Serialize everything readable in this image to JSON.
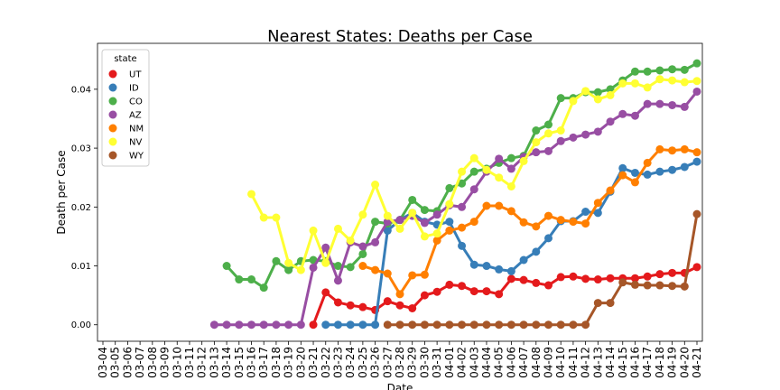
{
  "chart_data": {
    "type": "line",
    "title": "Nearest States: Deaths per Case",
    "x_label": "Date",
    "y_label": "Death per Case",
    "legend_title": "state",
    "legend": "upper left",
    "categories": [
      "03-04",
      "03-05",
      "03-06",
      "03-07",
      "03-08",
      "03-09",
      "03-10",
      "03-11",
      "03-12",
      "03-13",
      "03-14",
      "03-15",
      "03-16",
      "03-17",
      "03-18",
      "03-19",
      "03-20",
      "03-21",
      "03-22",
      "03-23",
      "03-24",
      "03-25",
      "03-26",
      "03-27",
      "03-28",
      "03-29",
      "03-30",
      "03-31",
      "04-01",
      "04-02",
      "04-03",
      "04-04",
      "04-05",
      "04-06",
      "04-07",
      "04-08",
      "04-09",
      "04-10",
      "04-11",
      "04-12",
      "04-13",
      "04-14",
      "04-15",
      "04-16",
      "04-17",
      "04-18",
      "04-19",
      "04-20",
      "04-21"
    ],
    "ylim": [
      -0.0028,
      0.0478
    ],
    "yticks": [
      {
        "value": 0,
        "label": "0.00"
      },
      0.01,
      0.02,
      0.03,
      0.04
    ],
    "series": [
      {
        "name": "UT",
        "color": "#e41a1c",
        "values": [
          null,
          null,
          null,
          null,
          null,
          null,
          null,
          null,
          null,
          null,
          null,
          null,
          null,
          null,
          null,
          null,
          null,
          0,
          0.0055,
          0.0038,
          0.0033,
          0.003,
          0.0025,
          0.004,
          0.0033,
          0.0028,
          0.005,
          0.0056,
          0.0068,
          0.0066,
          0.0057,
          0.0057,
          0.0052,
          0.0078,
          0.0076,
          0.0071,
          0.0067,
          0.0081,
          0.0082,
          0.0078,
          0.0077,
          0.0079,
          0.0079,
          0.0079,
          0.0082,
          0.0086,
          0.0088,
          0.0088,
          0.0098
        ]
      },
      {
        "name": "ID",
        "color": "#377eb8",
        "values": [
          null,
          null,
          null,
          null,
          null,
          null,
          null,
          null,
          null,
          null,
          null,
          null,
          null,
          null,
          null,
          null,
          null,
          null,
          0,
          0,
          0,
          0,
          0,
          0.016,
          0.0178,
          0.019,
          0.0175,
          0.017,
          0.0175,
          0.0134,
          0.0102,
          0.01,
          0.0094,
          0.0091,
          0.011,
          0.0124,
          0.0147,
          0.0176,
          0.0176,
          0.0192,
          0.019,
          0.0226,
          0.0266,
          0.0258,
          0.0255,
          0.026,
          0.0263,
          0.0268,
          0.0277
        ]
      },
      {
        "name": "CO",
        "color": "#4daf4a",
        "values": [
          null,
          null,
          null,
          null,
          null,
          null,
          null,
          null,
          null,
          null,
          0.01,
          0.0077,
          0.0077,
          0.0063,
          0.0108,
          0.0093,
          0.0108,
          0.011,
          0.0108,
          0.01,
          0.0098,
          0.012,
          0.0175,
          0.0172,
          0.0178,
          0.0212,
          0.0195,
          0.0193,
          0.0232,
          0.024,
          0.026,
          0.0265,
          0.0275,
          0.0283,
          0.0287,
          0.033,
          0.034,
          0.0385,
          0.0385,
          0.0395,
          0.0395,
          0.04,
          0.0415,
          0.043,
          0.043,
          0.0432,
          0.0434,
          0.0433,
          0.0444
        ]
      },
      {
        "name": "AZ",
        "color": "#984ea3",
        "values": [
          null,
          null,
          null,
          null,
          null,
          null,
          null,
          null,
          null,
          0,
          0,
          0,
          0,
          0,
          0,
          0,
          0,
          0.0097,
          0.0131,
          0.0075,
          0.014,
          0.0133,
          0.014,
          0.0175,
          0.0178,
          0.0185,
          0.0173,
          0.0187,
          0.0203,
          0.02,
          0.023,
          0.026,
          0.0282,
          0.0265,
          0.0285,
          0.0293,
          0.0295,
          0.0312,
          0.0318,
          0.0323,
          0.0328,
          0.0345,
          0.0358,
          0.0355,
          0.0375,
          0.0375,
          0.0373,
          0.037,
          0.0396
        ]
      },
      {
        "name": "NM",
        "color": "#ff7f00",
        "values": [
          null,
          null,
          null,
          null,
          null,
          null,
          null,
          null,
          null,
          null,
          null,
          null,
          null,
          null,
          null,
          null,
          null,
          null,
          null,
          null,
          null,
          0.01,
          0.0093,
          0.0087,
          0.0052,
          0.0084,
          0.0085,
          0.0143,
          0.016,
          0.0165,
          0.0175,
          0.0202,
          0.0202,
          0.0193,
          0.0174,
          0.0167,
          0.0185,
          0.0178,
          0.0175,
          0.0172,
          0.0207,
          0.0228,
          0.0254,
          0.0242,
          0.0275,
          0.0298,
          0.0296,
          0.0298,
          0.0293
        ]
      },
      {
        "name": "NV",
        "color": "#ffff33",
        "values": [
          null,
          null,
          null,
          null,
          null,
          null,
          null,
          null,
          null,
          null,
          null,
          null,
          0.0222,
          0.0182,
          0.0182,
          0.0105,
          0.0093,
          0.016,
          0.0105,
          0.0163,
          0.0143,
          0.0187,
          0.0238,
          0.0185,
          0.0163,
          0.019,
          0.015,
          0.0155,
          0.0205,
          0.026,
          0.0283,
          0.0263,
          0.025,
          0.0235,
          0.0278,
          0.031,
          0.0325,
          0.033,
          0.038,
          0.0397,
          0.0383,
          0.039,
          0.041,
          0.041,
          0.0403,
          0.0417,
          0.0415,
          0.0412,
          0.0414
        ]
      },
      {
        "name": "WY",
        "color": "#a65628",
        "values": [
          null,
          null,
          null,
          null,
          null,
          null,
          null,
          null,
          null,
          null,
          null,
          null,
          null,
          null,
          null,
          null,
          null,
          null,
          null,
          null,
          null,
          null,
          null,
          0,
          0,
          0,
          0,
          0,
          0,
          0,
          0,
          0,
          0,
          0,
          0,
          0,
          0,
          0,
          0,
          0,
          0.0037,
          0.0037,
          0.0072,
          0.0068,
          0.0067,
          0.0067,
          0.0066,
          0.0065,
          0.0188
        ]
      }
    ]
  }
}
